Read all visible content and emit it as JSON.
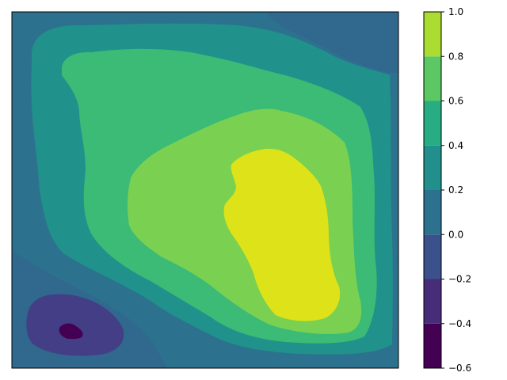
{
  "chart_data": {
    "type": "contour",
    "title": "",
    "xlabel": "",
    "ylabel": "",
    "axes_ticks_visible": false,
    "colormap": "viridis",
    "levels": [
      -0.6,
      -0.4,
      -0.2,
      0.0,
      0.2,
      0.4,
      0.6,
      0.8,
      1.0
    ],
    "band_colors": [
      "#46085c",
      "#433e85",
      "#30678d",
      "#25848e",
      "#1f9e89",
      "#36b778",
      "#6ccd5a",
      "#b8de29",
      "#dde318"
    ],
    "colorbar": {
      "ticks": [
        -0.6,
        -0.4,
        -0.2,
        0.0,
        0.2,
        0.4,
        0.6,
        0.8,
        1.0
      ],
      "tick_labels": [
        "−0.6",
        "−0.4",
        "−0.2",
        "0.0",
        "0.2",
        "0.4",
        "0.6",
        "0.8",
        "1.0"
      ],
      "band_colors": [
        "#440154",
        "#472c7a",
        "#3b518b",
        "#2c718e",
        "#21908d",
        "#27ad81",
        "#5cc863",
        "#aadc32",
        "#dde318"
      ]
    },
    "regions": [
      {
        "band": [
          0.8,
          1.0
        ],
        "description": "peak region, right-center"
      },
      {
        "band": [
          -0.6,
          -0.4
        ],
        "description": "minimum near lower-left"
      }
    ]
  }
}
